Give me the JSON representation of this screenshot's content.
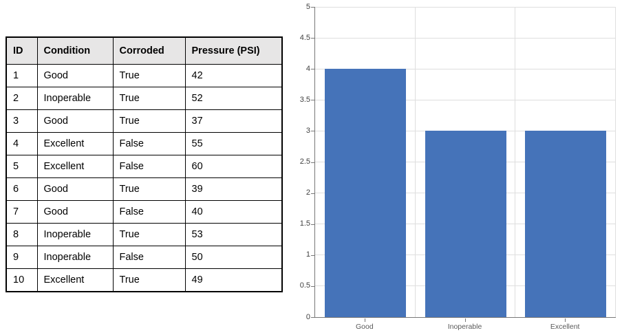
{
  "table": {
    "columns": [
      "ID",
      "Condition",
      "Corroded",
      "Pressure (PSI)"
    ],
    "rows": [
      [
        "1",
        "Good",
        "True",
        "42"
      ],
      [
        "2",
        "Inoperable",
        "True",
        "52"
      ],
      [
        "3",
        "Good",
        "True",
        "37"
      ],
      [
        "4",
        "Excellent",
        "False",
        "55"
      ],
      [
        "5",
        "Excellent",
        "False",
        "60"
      ],
      [
        "6",
        "Good",
        "True",
        "39"
      ],
      [
        "7",
        "Good",
        "False",
        "40"
      ],
      [
        "8",
        "Inoperable",
        "True",
        "53"
      ],
      [
        "9",
        "Inoperable",
        "False",
        "50"
      ],
      [
        "10",
        "Excellent",
        "True",
        "49"
      ]
    ],
    "header_bg": "#e7e6e6",
    "border_color": "#000000"
  },
  "chart_data": {
    "type": "bar",
    "categories": [
      "Good",
      "Inoperable",
      "Excellent"
    ],
    "values": [
      4,
      3,
      3
    ],
    "title": "",
    "xlabel": "",
    "ylabel": "",
    "ylim": [
      0,
      5
    ],
    "ytick_step": 0.5,
    "ytick_labels": [
      "0",
      "0.5",
      "1",
      "1.5",
      "2",
      "2.5",
      "3",
      "3.5",
      "4",
      "4.5",
      "5"
    ],
    "grid": true,
    "legend": false,
    "bar_color": "#4573b9",
    "gridline_color": "#dedede",
    "axis_color": "#767676",
    "y_label_color": "#404040",
    "x_label_color": "#595959"
  }
}
